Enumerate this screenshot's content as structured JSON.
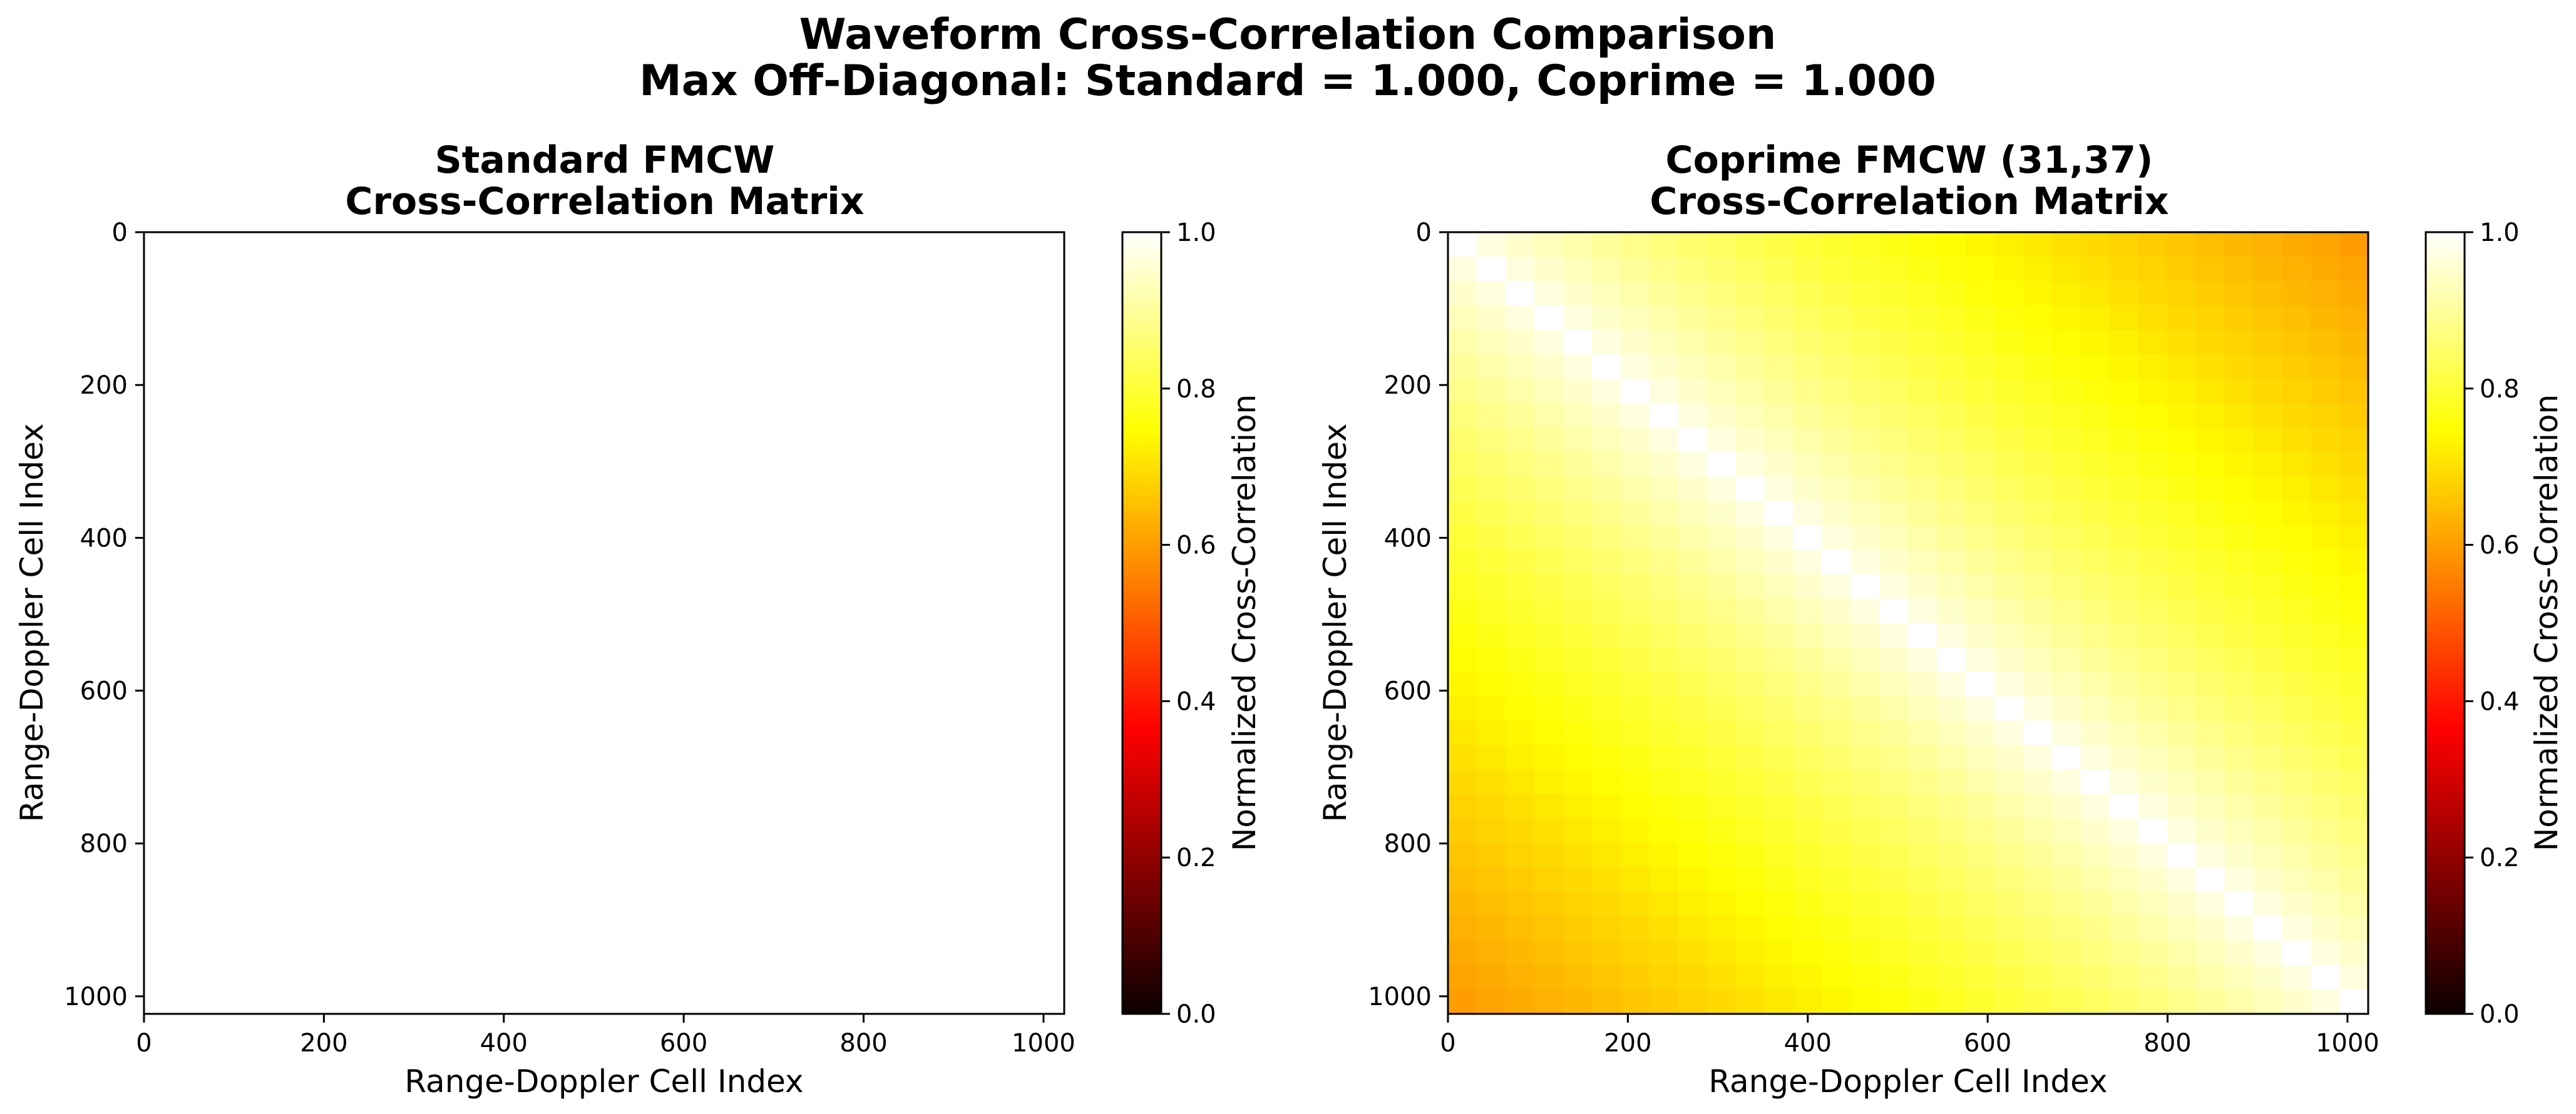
{
  "figure": {
    "suptitle_line1": "Waveform Cross-Correlation Comparison",
    "suptitle_line2": "Max Off-Diagonal: Standard = 1.000, Coprime = 1.000"
  },
  "colormap": {
    "name": "hot",
    "stops": [
      {
        "v": 0.0,
        "color": "#0b0000"
      },
      {
        "v": 0.365,
        "color": "#ff0000"
      },
      {
        "v": 0.746,
        "color": "#ffff00"
      },
      {
        "v": 1.0,
        "color": "#ffffff"
      }
    ]
  },
  "chart_data": [
    {
      "type": "heatmap",
      "title_line1": "Standard FMCW",
      "title_line2": "Cross-Correlation Matrix",
      "xlabel": "Range-Doppler Cell Index",
      "ylabel": "Range-Doppler Cell Index",
      "xlim": [
        0,
        1023
      ],
      "ylim": [
        1023,
        0
      ],
      "x_ticks": [
        0,
        200,
        400,
        600,
        800,
        1000
      ],
      "y_ticks": [
        0,
        200,
        400,
        600,
        800,
        1000
      ],
      "matrix_size": 1024,
      "uniform_value": 1.0,
      "colorbar": {
        "label": "Normalized Cross-Correlation",
        "vmin": 0.0,
        "vmax": 1.0,
        "ticks": [
          "0.0",
          "0.2",
          "0.4",
          "0.6",
          "0.8",
          "1.0"
        ]
      }
    },
    {
      "type": "heatmap",
      "title_line1": "Coprime FMCW (31,37)",
      "title_line2": "Cross-Correlation Matrix",
      "xlabel": "Range-Doppler Cell Index",
      "ylabel": "Range-Doppler Cell Index",
      "xlim": [
        0,
        1023
      ],
      "ylim": [
        1023,
        0
      ],
      "x_ticks": [
        0,
        200,
        400,
        600,
        800,
        1000
      ],
      "y_ticks": [
        0,
        200,
        400,
        600,
        800,
        1000
      ],
      "matrix_size": 1024,
      "grid_blocks": 32,
      "diagonal_value": 1.0,
      "corner_value": 0.6,
      "colorbar": {
        "label": "Normalized Cross-Correlation",
        "vmin": 0.0,
        "vmax": 1.0,
        "ticks": [
          "0.0",
          "0.2",
          "0.4",
          "0.6",
          "0.8",
          "1.0"
        ]
      }
    }
  ]
}
